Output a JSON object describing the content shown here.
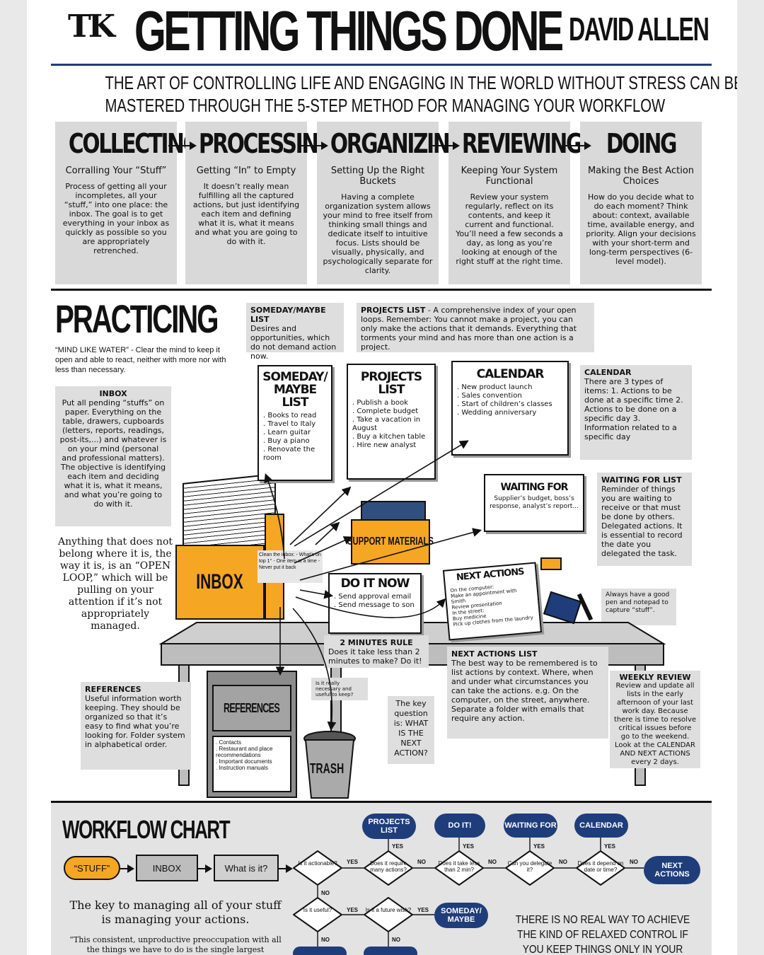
{
  "header": {
    "logo": "TK",
    "title": "GETTING THINGS DONE",
    "author": "DAVID ALLEN",
    "subtitle_line1": "THE ART OF CONTROLLING LIFE AND ENGAGING IN THE WORLD WITHOUT STRESS CAN BE",
    "subtitle_line2": "MASTERED THROUGH THE 5-STEP METHOD FOR MANAGING YOUR WORKFLOW"
  },
  "steps": [
    {
      "name": "COLLECTING",
      "sub": "Corralling Your “Stuff”",
      "desc": "Process of getting all your incompletes, all your “stuff,” into one place: the inbox. The goal is to get everything in your inbox as quickly as possible so you are appropriately retrenched."
    },
    {
      "name": "PROCESSING",
      "sub": "Getting “In” to Empty",
      "desc": "It doesn’t really mean fulfilling all the captured actions, but just identifying each item and defining what it is, what it means and what you are going to do with it."
    },
    {
      "name": "ORGANIZING",
      "sub": "Setting Up the Right Buckets",
      "desc": "Having a complete organization system allows your mind to free itself from thinking small things and dedicate itself to intuitive focus. Lists should be visually, physically, and psychologically separate for clarity."
    },
    {
      "name": "REVIEWING",
      "sub": "Keeping Your System Functional",
      "desc": "Review your system regularly, reflect on its contents, and keep it current and functional. You’ll need a few seconds a day, as long as you’re looking at enough of the right stuff at the right time."
    },
    {
      "name": "DOING",
      "sub": "Making the Best Action Choices",
      "desc": "How do you decide what to do each moment? Think about: context, available time, available energy, and priority. Align your decisions with your short-term and long-term perspectives (6-level model)."
    }
  ],
  "practicing": {
    "title": "PRACTICING",
    "quote": "“MIND LIKE WATER” - Clear the mind to keep it open and able to react, neither with more nor with less than necessary.",
    "someday_title": "SOMEDAY/MAYBE LIST",
    "someday_text": "Desires and opportunities, which do not demand action now.",
    "projects_title": "PROJECTS LIST",
    "projects_text": "- A comprehensive index of your open loops. Remember: You cannot make a project, you can only make the actions that it demands. Everything that torments your mind and has more than one action is a project.",
    "inbox_title": "INBOX",
    "inbox_text": "Put all pending “stuffs” on paper. Everything on the table, drawers, cupboards (letters, reports, readings, post-its,...) and whatever is on your mind (personal and professional matters). The objective is identifying each item and deciding what it is, what it means, and what you’re going to do with it.",
    "open_loop": "Anything that does not belong where it is, the way it is, is an “OPEN LOOP,” which will be pulling on your attention if it’s not appropriately managed.",
    "calendar_title": "CALENDAR",
    "calendar_text": "There are 3 types of items: 1. Actions to be done at a specific time 2. Actions to be done on a specific day 3. Information related to a specific day",
    "waiting_title": "WAITING FOR LIST",
    "waiting_text": "Reminder of things you are waiting to receive or that must be done by others. Delegated actions. It is essential to record the date you delegated the task.",
    "pen_note": "Always have a good pen and notepad to capture “stuff”.",
    "references_title": "REFERENCES",
    "references_text": "Useful information worth keeping. They should be organized so that it’s easy to find what you’re looking for. Folder system in alphabetical order.",
    "keep_note": "Is it really necessary and useful to keep?",
    "key_question": "The key question is: WHAT IS THE NEXT ACTION?",
    "two_min_title": "2 MINUTES RULE",
    "two_min_text": "Does it take less than 2 minutes to make? Do it!",
    "next_title": "NEXT ACTIONS LIST",
    "next_text": "The best way to be remembered is to list actions by context. Where, when and under what circumstances you can take the actions. e.g. On the computer, on the street, anywhere. Separate a folder with emails that require any action.",
    "weekly_title": "WEEKLY REVIEW",
    "weekly_text": "Review and update all lists in the early afternoon of your last work day. Because there is time to resolve critical issues before go to the weekend. Look at the CALENDAR AND NEXT ACTIONS every 2 days.",
    "clean_inbox": "Clean the inbox: - What’s on top 1° - One item at a time - Never put it back"
  },
  "papers": {
    "someday": {
      "title1": "SOMEDAY/",
      "title2": "MAYBE LIST",
      "items": [
        ". Books to read",
        ". Travel to Italy",
        ". Learn guitar",
        ". Buy a piano",
        ". Renovate the room"
      ]
    },
    "projects": {
      "title": "PROJECTS LIST",
      "items": [
        ". Publish a book",
        ". Complete budget",
        ". Take a vacation in August",
        ". Buy a kitchen table",
        ". Hire new analyst"
      ]
    },
    "calendar": {
      "title": "CALENDAR",
      "items": [
        ". New product launch",
        ". Sales convention",
        ". Start of children’s classes",
        ". Wedding anniversary"
      ]
    },
    "waiting": {
      "title": "WAITING FOR",
      "text": "Supplier’s budget, boss’s response, analyst’s report..."
    },
    "doit": {
      "title": "DO IT NOW",
      "items": [
        ". Send approval email",
        ". Send message to son"
      ]
    },
    "next": {
      "title": "NEXT ACTIONS",
      "items": [
        "On the computer:",
        "Make an appointment with Smith",
        "Review presentation",
        "In the street:",
        "Buy medicine",
        "Pick up clothes from the laundry"
      ]
    },
    "inbox_label": "INBOX",
    "support_label": "SUPPORT MATERIALS",
    "references_label": "REFERENCES",
    "cabinet_items": [
      ". Contacts",
      ". Restaurant and place recommendations",
      ". Important documents",
      ". Instruction manuals"
    ],
    "trash_label": "TRASH"
  },
  "workflow": {
    "title": "WORKFLOW CHART",
    "stuff": "“STUFF”",
    "inbox": "INBOX",
    "what": "What is it?",
    "d_actionable": "Is it actionable?",
    "d_many": "Does it require many actions?",
    "d_two_min": "Does it take less than 2 min?",
    "d_delegate": "Can you delegate it?",
    "d_date": "Does it depend on date or time?",
    "d_useful": "Is it useful?",
    "d_future": "Is it a future wish?",
    "p_projects": "PROJECTS LIST",
    "p_doit": "DO IT!",
    "p_waiting": "WAITING FOR",
    "p_calendar": "CALENDAR",
    "p_next": "NEXT ACTIONS",
    "p_someday": "SOMEDAY/ MAYBE",
    "yes": "YES",
    "no": "NO",
    "key_text": "The key to managing all of your stuff is managing your actions.",
    "quote_text": "“This consistent, unproductive preoccupation with all the things we have to do is the single largest",
    "footer": "THERE IS NO REAL WAY TO ACHIEVE THE KIND OF RELAXED CONTROL IF YOU KEEP THINGS ONLY IN YOUR HEAD."
  },
  "colors": {
    "accent": "#f5a623",
    "navy": "#1f3d7a",
    "note_grey": "#dedede"
  }
}
